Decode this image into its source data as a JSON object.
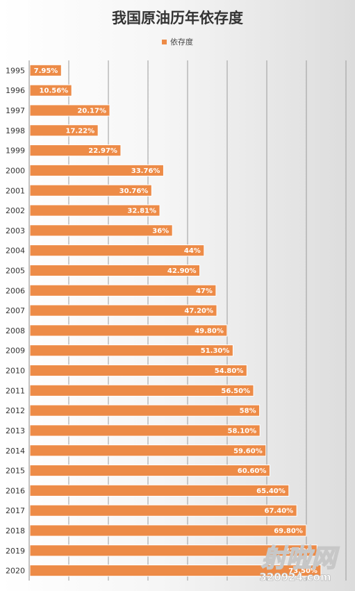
{
  "chart_data": {
    "type": "bar",
    "orientation": "horizontal",
    "title": "我国原油历年依存度",
    "legend_position": "top",
    "grid": true,
    "bar_color": "#ED8B47",
    "xlim": [
      0,
      80
    ],
    "series": [
      {
        "name": "依存度",
        "values": [
          7.95,
          10.56,
          20.17,
          17.22,
          22.97,
          33.76,
          30.76,
          32.81,
          36,
          44,
          42.9,
          47,
          47.2,
          49.8,
          51.3,
          54.8,
          56.5,
          58,
          58.1,
          59.6,
          60.6,
          65.4,
          67.4,
          69.8,
          72.5,
          73.5
        ],
        "labels": [
          "7.95%",
          "10.56%",
          "20.17%",
          "17.22%",
          "22.97%",
          "33.76%",
          "30.76%",
          "32.81%",
          "36%",
          "44%",
          "42.90%",
          "47%",
          "47.20%",
          "49.80%",
          "51.30%",
          "54.80%",
          "56.50%",
          "58%",
          "58.10%",
          "59.60%",
          "60.60%",
          "65.40%",
          "67.40%",
          "69.80%",
          "72.50%",
          "73.50%"
        ]
      }
    ],
    "categories": [
      "1995",
      "1996",
      "1997",
      "1998",
      "1999",
      "2000",
      "2001",
      "2002",
      "2003",
      "2004",
      "2005",
      "2006",
      "2007",
      "2008",
      "2009",
      "2010",
      "2011",
      "2012",
      "2013",
      "2014",
      "2015",
      "2016",
      "2017",
      "2018",
      "2019",
      "2020"
    ]
  },
  "watermark": {
    "main": "射啦网",
    "sub": "320924.com"
  }
}
